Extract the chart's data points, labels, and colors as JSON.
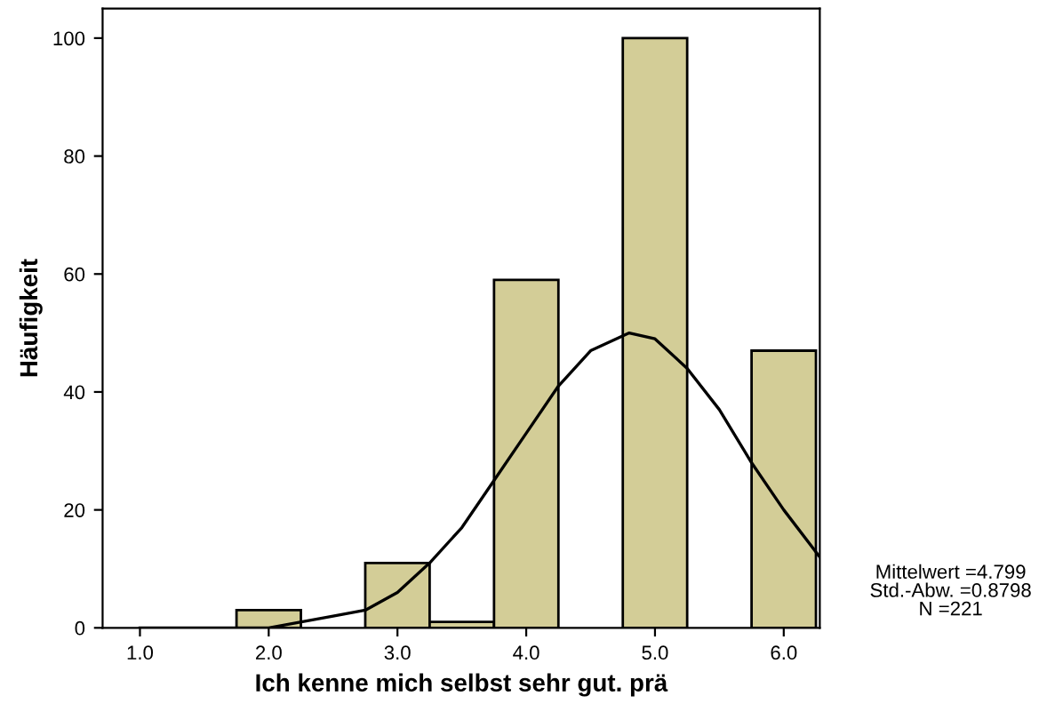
{
  "chart_data": {
    "type": "histogram",
    "xlabel": "Ich kenne mich selbst sehr gut. prä",
    "ylabel": "Häufigkeit",
    "bins": [
      1.75,
      2.25,
      2.75,
      3.25,
      3.75,
      4.25,
      4.75,
      5.25,
      5.75,
      6.25
    ],
    "values": [
      3,
      0,
      11,
      1,
      59,
      0,
      100,
      0,
      47
    ],
    "color": "#d3cd97",
    "series": [
      {
        "type": "line",
        "color": "#000000",
        "x": [
          1.0,
          1.5,
          2.0,
          2.5,
          2.75,
          3.0,
          3.25,
          3.5,
          3.75,
          4.0,
          4.25,
          4.5,
          4.8,
          5.0,
          5.25,
          5.5,
          5.75,
          6.0,
          6.28
        ],
        "values": [
          0,
          0,
          0,
          2,
          3,
          6,
          11,
          17,
          25,
          33,
          41,
          47,
          50,
          49,
          44,
          37,
          28,
          20,
          12
        ]
      }
    ],
    "xlim": [
      0.71,
      6.28
    ],
    "xticks": [
      {
        "value": 1,
        "label": "1.0"
      },
      {
        "value": 2,
        "label": "2.0"
      },
      {
        "value": 3,
        "label": "3.0"
      },
      {
        "value": 4,
        "label": "4.0"
      },
      {
        "value": 5,
        "label": "5.0"
      },
      {
        "value": 6,
        "label": "6.0"
      }
    ],
    "ylim": [
      0,
      105
    ],
    "yticks": [
      0,
      20,
      40,
      60,
      80,
      100
    ],
    "grid": false,
    "annotations": [
      "Mittelwert =4.799\nStd.-Abw. =0.8798\nN =221"
    ]
  }
}
